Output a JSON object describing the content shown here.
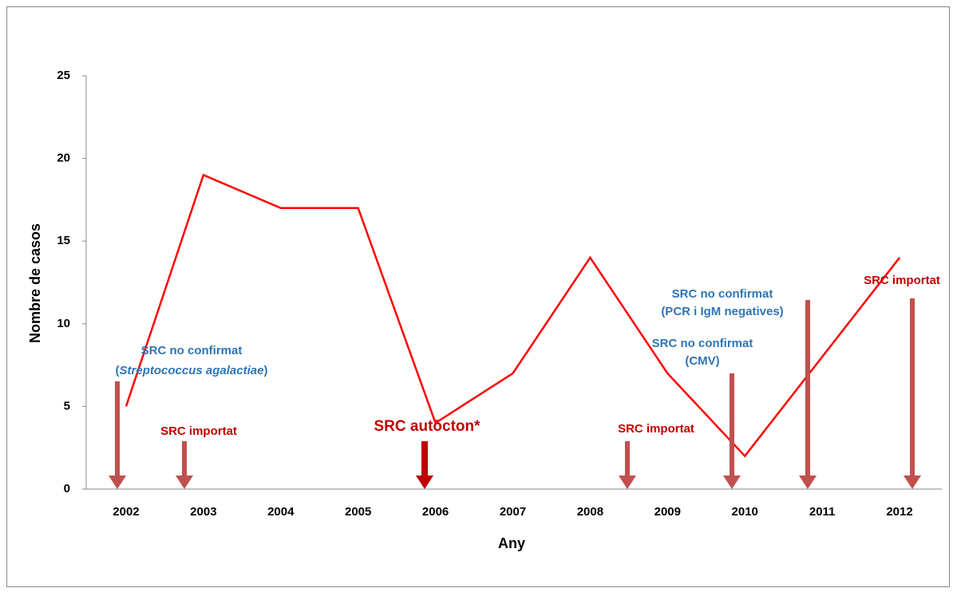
{
  "chart_data": {
    "type": "line",
    "x_label": "Any",
    "y_label": "Nombre de casos",
    "categories": [
      "2002",
      "2003",
      "2004",
      "2005",
      "2006",
      "2007",
      "2008",
      "2009",
      "2010",
      "2011",
      "2012"
    ],
    "series": [
      {
        "color": "#ff0000",
        "values": [
          5,
          19,
          17,
          17,
          4,
          7,
          14,
          7,
          2,
          8,
          14
        ]
      }
    ],
    "ylim": [
      0,
      25
    ],
    "yticks": [
      0,
      5,
      10,
      15,
      20,
      25
    ],
    "grid": false,
    "annotations": [
      {
        "lines": [
          [
            "SRC  no  confirmat"
          ],
          [
            "(",
            "Streptococcus agalactiae",
            ")"
          ]
        ]
      },
      {
        "lines": [
          [
            "SRC importat"
          ]
        ]
      },
      {
        "lines": [
          [
            "SRC  autòcton*"
          ]
        ]
      },
      {
        "lines": [
          [
            "SRC importat"
          ]
        ]
      },
      {
        "lines": [
          [
            "SRC  no confirmat"
          ],
          [
            "(CMV)"
          ]
        ]
      },
      {
        "lines": [
          [
            "SRC  no confirmat"
          ],
          [
            "(PCR i IgM negatives)"
          ]
        ]
      },
      {
        "lines": [
          [
            "SRC  importat"
          ]
        ]
      }
    ]
  }
}
